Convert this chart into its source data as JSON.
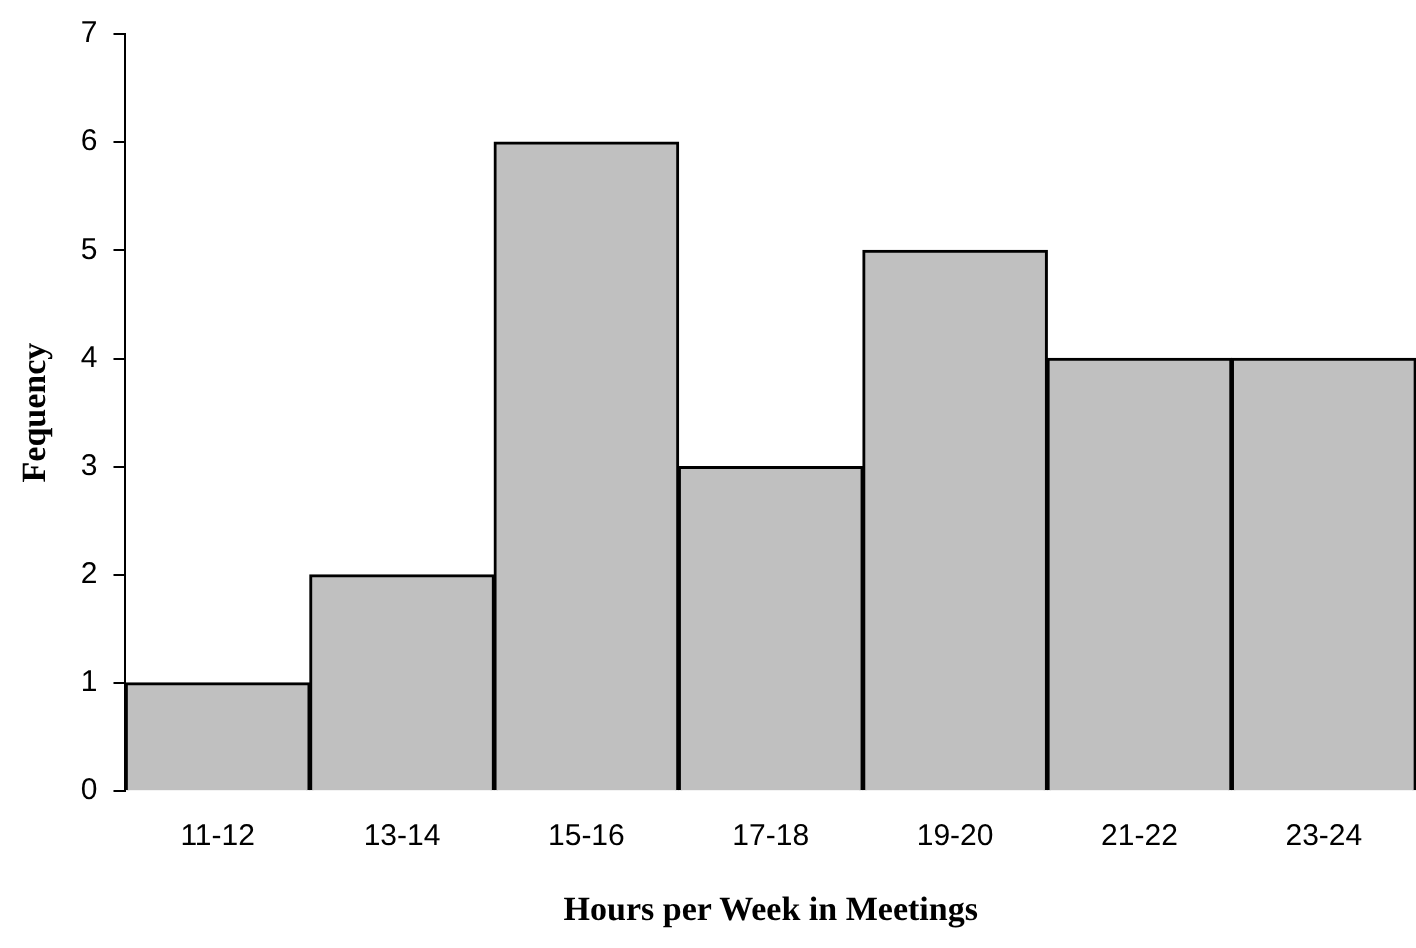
{
  "chart_data": {
    "type": "bar",
    "xlabel": "Hours per Week in Meetings",
    "ylabel": "Fequency",
    "categories": [
      "11-12",
      "13-14",
      "15-16",
      "17-18",
      "19-20",
      "21-22",
      "23-24"
    ],
    "values": [
      1,
      2,
      6,
      3,
      5,
      4,
      4
    ],
    "color": "#c0c0c0",
    "ylim": [
      0,
      7
    ],
    "yticks": [
      0,
      1,
      2,
      3,
      4,
      5,
      6,
      7
    ],
    "grid": false,
    "legend": false
  }
}
